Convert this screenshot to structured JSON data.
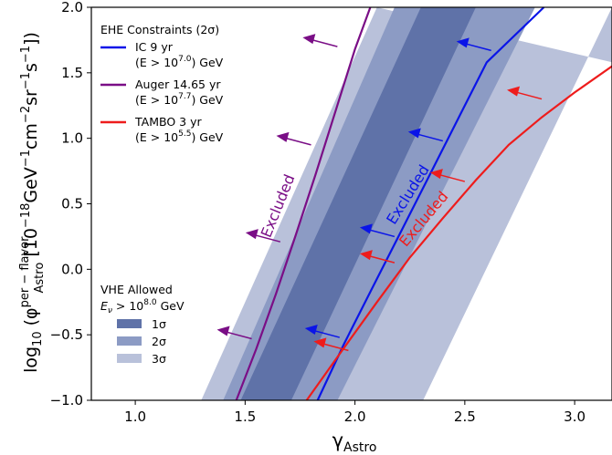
{
  "chart_data": {
    "type": "area",
    "xlabel_main": "γ",
    "xlabel_sub": "Astro",
    "ylabel_parts": [
      "log",
      "10",
      " (φ",
      "per − flavor",
      "Astro",
      " [10",
      "−18",
      "GeV",
      "−1",
      "cm",
      "−2",
      "sr",
      "−1",
      "s",
      "−1",
      "])"
    ],
    "xlim": [
      0.8,
      3.17
    ],
    "ylim": [
      -1.0,
      2.0
    ],
    "xticks": [
      1.0,
      1.5,
      2.0,
      2.5,
      3.0
    ],
    "xtick_labels": [
      "1.0",
      "1.5",
      "2.0",
      "2.5",
      "3.0"
    ],
    "yticks": [
      -1.0,
      -0.5,
      0.0,
      0.5,
      1.0,
      1.5,
      2.0
    ],
    "ytick_labels": [
      "−1.0",
      "−0.5",
      "0.0",
      "0.5",
      "1.0",
      "1.5",
      "2.0"
    ],
    "bands": [
      {
        "name": "3σ",
        "color": "#b9c1da",
        "lower_edge": [
          [
            1.3,
            -1.0
          ],
          [
            2.1,
            2.0
          ]
        ],
        "upper_edge": [
          [
            2.31,
            -1.0
          ],
          [
            3.17,
            1.58
          ]
        ]
      },
      {
        "name": "2σ",
        "color": "#8c9bc4",
        "lower_edge": [
          [
            1.4,
            -1.0
          ],
          [
            2.18,
            2.0
          ]
        ],
        "upper_edge": [
          [
            1.92,
            -1.0
          ],
          [
            2.82,
            2.0
          ]
        ]
      },
      {
        "name": "1σ",
        "color": "#5f72a8",
        "lower_edge": [
          [
            1.48,
            -1.0
          ],
          [
            2.3,
            2.0
          ]
        ],
        "upper_edge": [
          [
            1.71,
            -1.0
          ],
          [
            2.55,
            2.0
          ]
        ]
      }
    ],
    "constraints_title": "EHE Constraints (2σ)",
    "constraints": [
      {
        "label": "IC 9 yr",
        "threshold_exp": "7.0",
        "color": "#0a14e8",
        "points": [
          [
            1.83,
            -1.0
          ],
          [
            1.95,
            -0.57
          ],
          [
            2.08,
            -0.14
          ],
          [
            2.21,
            0.29
          ],
          [
            2.34,
            0.72
          ],
          [
            2.47,
            1.15
          ],
          [
            2.6,
            1.58
          ],
          [
            2.86,
            2.0
          ]
        ],
        "excluded_text": "Excluded",
        "text_at": [
          2.26,
          0.55
        ],
        "text_angle": -58,
        "arrows": [
          [
            1.93,
            -0.52
          ],
          [
            2.18,
            0.25
          ],
          [
            2.4,
            0.98
          ],
          [
            2.62,
            1.67
          ]
        ]
      },
      {
        "label": "Auger 14.65 yr",
        "threshold_exp": "7.7",
        "color": "#7a0e86",
        "points": [
          [
            1.46,
            -1.0
          ],
          [
            1.55,
            -0.61
          ],
          [
            1.64,
            -0.19
          ],
          [
            1.73,
            0.26
          ],
          [
            1.82,
            0.72
          ],
          [
            1.91,
            1.2
          ],
          [
            2.0,
            1.68
          ],
          [
            2.07,
            2.0
          ]
        ],
        "excluded_text": "Excluded",
        "text_at": [
          1.67,
          0.47
        ],
        "text_angle": -68,
        "arrows": [
          [
            1.53,
            -0.53
          ],
          [
            1.66,
            0.21
          ],
          [
            1.8,
            0.95
          ],
          [
            1.92,
            1.7
          ]
        ]
      },
      {
        "label": "TAMBO 3 yr",
        "threshold_exp": "5.5",
        "color": "#ee1c1c",
        "points": [
          [
            1.78,
            -1.0
          ],
          [
            1.95,
            -0.6
          ],
          [
            2.1,
            -0.25
          ],
          [
            2.25,
            0.09
          ],
          [
            2.4,
            0.39
          ],
          [
            2.55,
            0.68
          ],
          [
            2.7,
            0.95
          ],
          [
            2.85,
            1.16
          ],
          [
            3.0,
            1.35
          ],
          [
            3.17,
            1.55
          ]
        ],
        "excluded_text": "Excluded",
        "text_at": [
          2.33,
          0.36
        ],
        "text_angle": -50,
        "arrows": [
          [
            1.97,
            -0.62
          ],
          [
            2.18,
            0.05
          ],
          [
            2.5,
            0.67
          ],
          [
            2.85,
            1.3
          ]
        ]
      }
    ],
    "allowed_title_line1": "VHE Allowed",
    "allowed_title_line2_lhs": "E",
    "allowed_title_line2_sub": "ν",
    "allowed_title_line2_op": " > 10",
    "allowed_title_line2_exp": "8.0",
    "allowed_title_line2_unit": " GeV",
    "legend_energy_prefix": "(E > 10",
    "legend_energy_suffix": ") GeV",
    "grid": false,
    "constraints_legend_position": "top-left",
    "allowed_legend_position": "lower-left"
  }
}
